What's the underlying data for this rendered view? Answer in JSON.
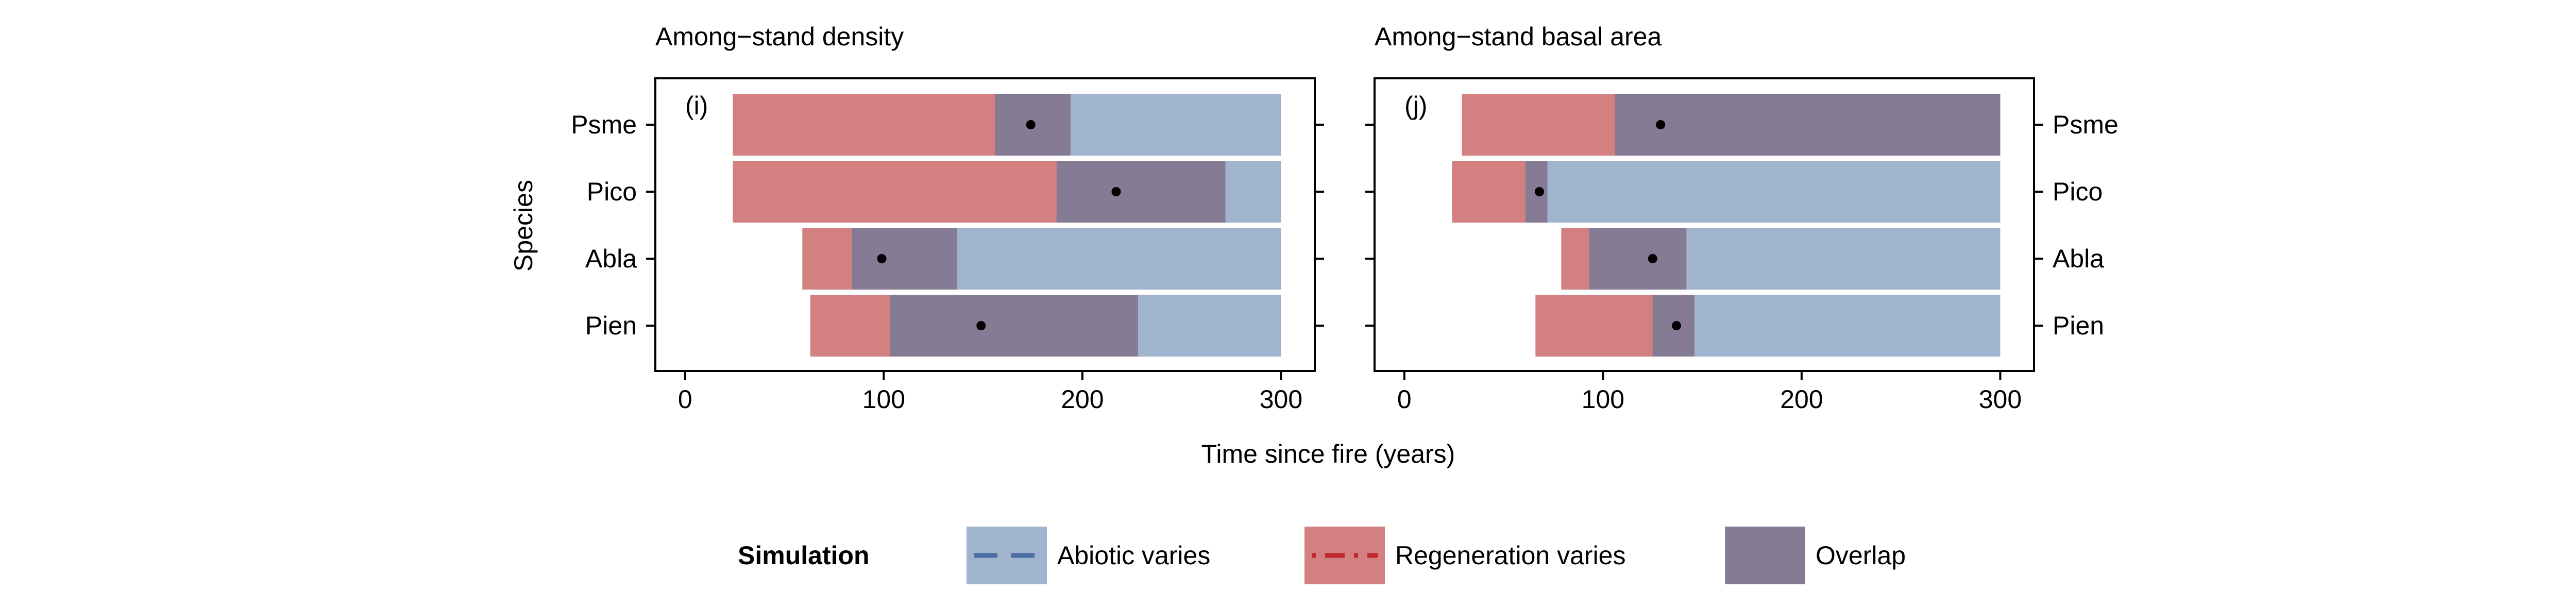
{
  "figure": {
    "xlabel": "Time since fire (years)",
    "ylabel": "Species"
  },
  "colors": {
    "abiotic": "#a0b4cd",
    "regeneration": "#d38080",
    "overlap": "#857b94",
    "abiotic_line": "#4a6fa5",
    "regeneration_line": "#c0282d",
    "point": "#000000",
    "axis": "#000000"
  },
  "chart_data": [
    {
      "type": "bar",
      "orientation": "horizontal-range",
      "title": "Among−stand density",
      "panel_label": "(i)",
      "xlabel": "Time since fire (years)",
      "ylabel": "Species",
      "xlim": [
        -15,
        317
      ],
      "xticks": [
        0,
        100,
        200,
        300
      ],
      "y_axis_side": "left",
      "categories": [
        "Psme",
        "Pico",
        "Abla",
        "Pien"
      ],
      "series": [
        {
          "name": "Abiotic varies",
          "ranges": [
            [
              156,
              300
            ],
            [
              187,
              300
            ],
            [
              84,
              300
            ],
            [
              103,
              300
            ]
          ]
        },
        {
          "name": "Regeneration varies",
          "ranges": [
            [
              24,
              194
            ],
            [
              24,
              272
            ],
            [
              59,
              137
            ],
            [
              63,
              228
            ]
          ]
        },
        {
          "name": "Overlap",
          "ranges": [
            [
              156,
              194
            ],
            [
              187,
              272
            ],
            [
              84,
              137
            ],
            [
              103,
              228
            ]
          ]
        }
      ],
      "points": [
        174,
        217,
        99,
        149
      ]
    },
    {
      "type": "bar",
      "orientation": "horizontal-range",
      "title": "Among−stand basal area",
      "panel_label": "(j)",
      "xlabel": "Time since fire (years)",
      "ylabel": "",
      "xlim": [
        -15,
        317
      ],
      "xticks": [
        0,
        100,
        200,
        300
      ],
      "y_axis_side": "right",
      "categories": [
        "Psme",
        "Pico",
        "Abla",
        "Pien"
      ],
      "series": [
        {
          "name": "Abiotic varies",
          "ranges": [
            [
              106,
              300
            ],
            [
              61,
              300
            ],
            [
              93,
              300
            ],
            [
              125,
              300
            ]
          ]
        },
        {
          "name": "Regeneration varies",
          "ranges": [
            [
              29,
              300
            ],
            [
              24,
              72
            ],
            [
              79,
              142
            ],
            [
              66,
              146
            ]
          ]
        },
        {
          "name": "Overlap",
          "ranges": [
            [
              106,
              300
            ],
            [
              61,
              72
            ],
            [
              93,
              142
            ],
            [
              125,
              146
            ]
          ]
        }
      ],
      "points": [
        129,
        68,
        125,
        137
      ]
    }
  ],
  "legend": {
    "title": "Simulation",
    "items": [
      {
        "key": "abiotic",
        "label": "Abiotic varies",
        "line": "dashed"
      },
      {
        "key": "regeneration",
        "label": "Regeneration varies",
        "line": "dash-dot"
      },
      {
        "key": "overlap",
        "label": "Overlap",
        "line": "none"
      }
    ]
  }
}
